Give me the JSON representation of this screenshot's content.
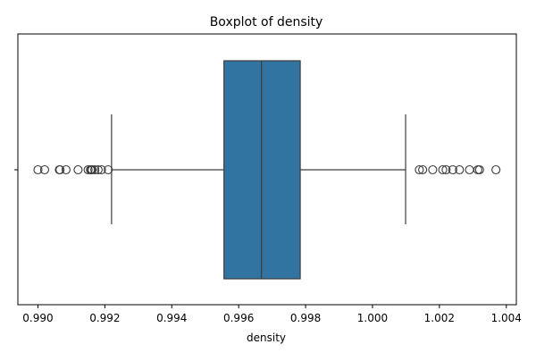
{
  "chart_data": {
    "type": "boxplot",
    "title": "Boxplot of density",
    "xlabel": "density",
    "ylabel": "",
    "orientation": "horizontal",
    "xlim": [
      0.9894,
      1.0043
    ],
    "x_ticks": [
      0.99,
      0.992,
      0.994,
      0.996,
      0.998,
      1.0,
      1.002,
      1.004
    ],
    "x_tick_labels": [
      "0.990",
      "0.992",
      "0.994",
      "0.996",
      "0.998",
      "1.000",
      "1.002",
      "1.004"
    ],
    "colors": {
      "box_fill": "#3274a1",
      "line": "#3d3d3d",
      "frame": "#000000"
    },
    "box": {
      "whisker_low": 0.9922,
      "q1": 0.99556,
      "median": 0.99668,
      "q3": 0.99784,
      "whisker_high": 1.00099
    },
    "outliers": [
      0.99,
      0.9902,
      0.99064,
      0.99066,
      0.99084,
      0.9912,
      0.9915,
      0.99157,
      0.9916,
      0.99162,
      0.9917,
      0.9918,
      0.9919,
      0.9921,
      1.0014,
      1.0015,
      1.0018,
      1.0021,
      1.0022,
      1.0024,
      1.0026,
      1.0029,
      1.00315,
      1.0032,
      1.00369
    ]
  }
}
